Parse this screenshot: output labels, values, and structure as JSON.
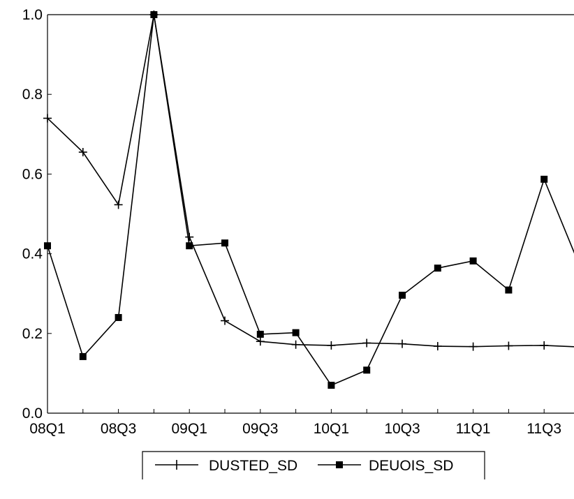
{
  "chart_data": {
    "type": "line",
    "categories": [
      "08Q1",
      "08Q2",
      "08Q3",
      "08Q4",
      "09Q1",
      "09Q2",
      "09Q3",
      "09Q4",
      "10Q1",
      "10Q2",
      "10Q3",
      "10Q4",
      "11Q1",
      "11Q2",
      "11Q3",
      "11Q4"
    ],
    "xticklabels": [
      "08Q1",
      "08Q3",
      "09Q1",
      "09Q3",
      "10Q1",
      "10Q3",
      "11Q1",
      "11Q3"
    ],
    "yticklabels": [
      "0.0",
      "0.2",
      "0.4",
      "0.6",
      "0.8",
      "1.0"
    ],
    "ylim": [
      0,
      1
    ],
    "series": [
      {
        "name": "DUSTED_SD",
        "marker": "plus",
        "color": "#000000",
        "values": [
          0.74,
          0.655,
          0.523,
          1.0,
          0.442,
          0.232,
          0.18,
          0.172,
          0.17,
          0.176,
          0.174,
          0.168,
          0.167,
          0.169,
          0.17,
          0.166
        ]
      },
      {
        "name": "DEUOIS_SD",
        "marker": "square",
        "color": "#000000",
        "values": [
          0.42,
          0.142,
          0.24,
          1.0,
          0.42,
          0.427,
          0.198,
          0.202,
          0.07,
          0.108,
          0.296,
          0.364,
          0.382,
          0.309,
          0.587,
          0.37
        ]
      }
    ],
    "legend_position": "bottom-center",
    "grid": false,
    "title": "",
    "xlabel": "",
    "ylabel": ""
  }
}
